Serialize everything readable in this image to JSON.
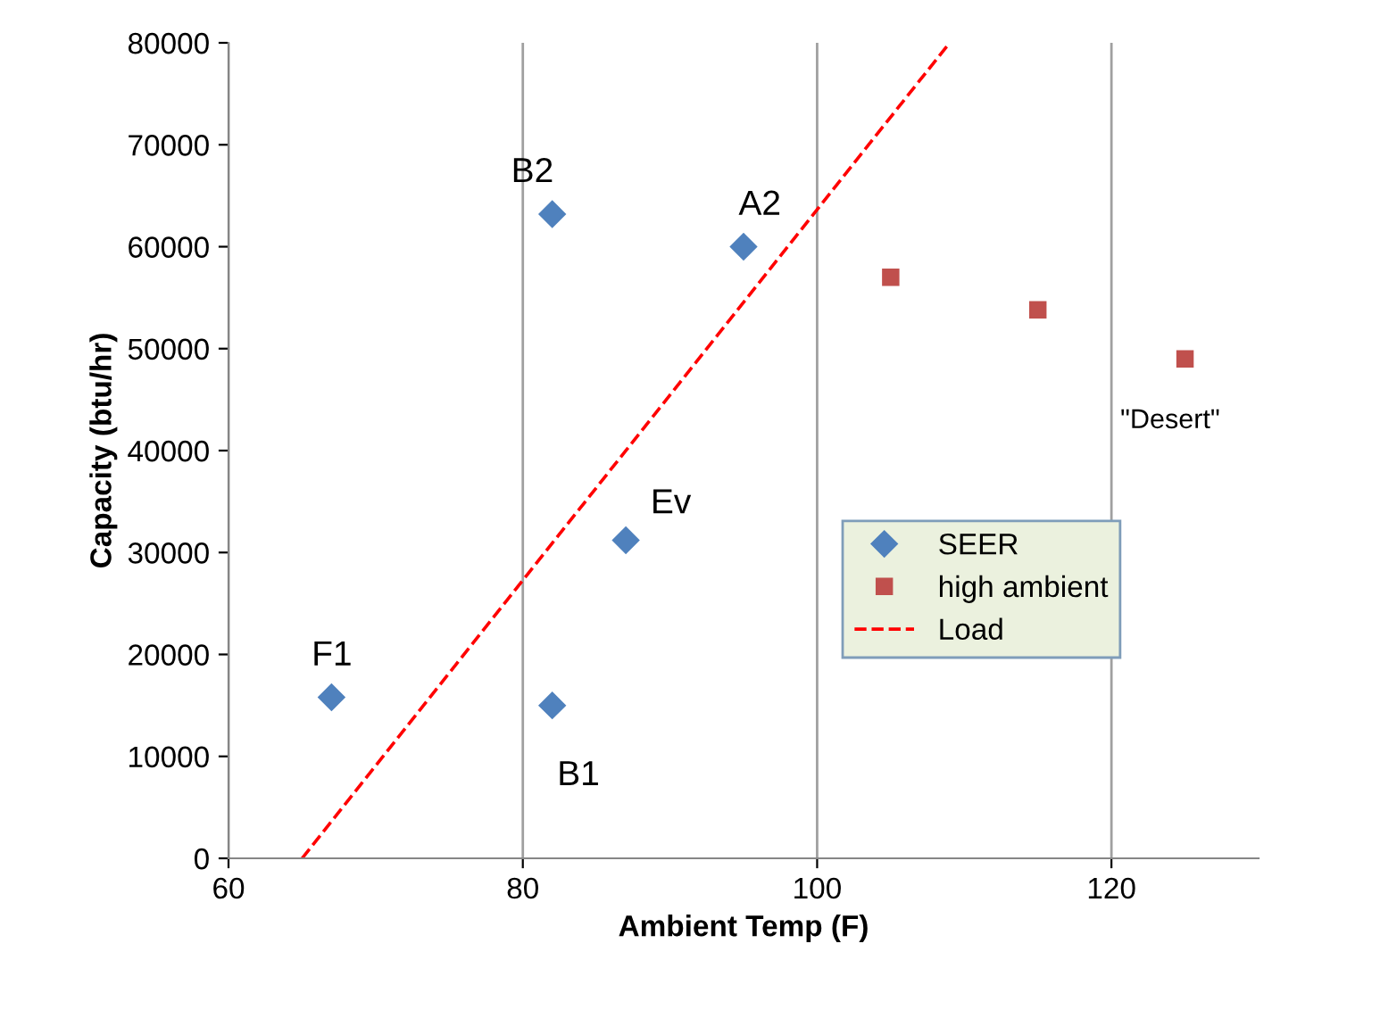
{
  "chart_data": {
    "type": "scatter",
    "xlabel": "Ambient Temp (F)",
    "ylabel": "Capacity (btu/hr)",
    "xlim": [
      60,
      130
    ],
    "xticks": [
      60,
      80,
      100,
      120
    ],
    "ylim": [
      0,
      80000
    ],
    "yticks": [
      0,
      10000,
      20000,
      30000,
      40000,
      50000,
      60000,
      70000,
      80000
    ],
    "grid": "x",
    "legend": "right",
    "series": [
      {
        "name": "SEER",
        "marker": "diamond",
        "color": "#4f81bd",
        "x": [
          67,
          82,
          95,
          87,
          82
        ],
        "values": [
          15800,
          63200,
          60000,
          31200,
          15000
        ]
      },
      {
        "name": "high ambient",
        "marker": "square",
        "color": "#c0504d",
        "x": [
          105,
          115,
          125
        ],
        "values": [
          57000,
          53800,
          49000
        ]
      },
      {
        "name": "Load",
        "type": "line",
        "marker": "none",
        "line_style": "dashed",
        "color": "#ff0000",
        "x": [
          65,
          109
        ],
        "values": [
          0,
          80000
        ]
      }
    ],
    "annotations": [
      {
        "text": "F1",
        "x": 67,
        "y": 15800
      },
      {
        "text": "B2",
        "x": 82,
        "y": 63200
      },
      {
        "text": "A2",
        "x": 95,
        "y": 60000
      },
      {
        "text": "Ev",
        "x": 87,
        "y": 31200
      },
      {
        "text": "B1",
        "x": 82,
        "y": 15000
      },
      {
        "text": "\"Desert\"",
        "x": 125,
        "y": 49000
      }
    ]
  }
}
